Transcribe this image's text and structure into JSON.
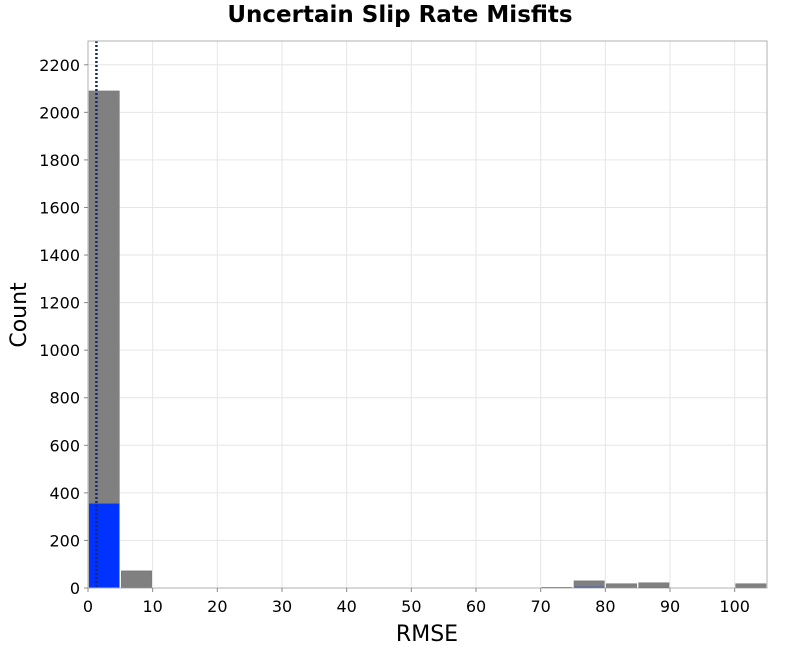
{
  "chart_data": {
    "type": "bar",
    "title": "Uncertain Slip Rate Misfits",
    "xlabel": "RMSE",
    "ylabel": "Count",
    "xlim": [
      0,
      105
    ],
    "ylim": [
      0,
      2300
    ],
    "x_ticks": [
      0,
      10,
      20,
      30,
      40,
      50,
      60,
      70,
      80,
      90,
      100
    ],
    "y_ticks": [
      0,
      200,
      400,
      600,
      800,
      1000,
      1200,
      1400,
      1600,
      1800,
      2000,
      2200
    ],
    "grid": true,
    "bin_width": 5,
    "series": [
      {
        "color": "#808080",
        "bins": [
          {
            "x0": 0,
            "x1": 5,
            "value": 2090
          },
          {
            "x0": 5,
            "x1": 10,
            "value": 72
          },
          {
            "x0": 70,
            "x1": 75,
            "value": 3
          },
          {
            "x0": 75,
            "x1": 80,
            "value": 30
          },
          {
            "x0": 80,
            "x1": 85,
            "value": 18
          },
          {
            "x0": 85,
            "x1": 90,
            "value": 22
          },
          {
            "x0": 100,
            "x1": 105,
            "value": 18
          }
        ]
      },
      {
        "color": "#0033ff",
        "bins": [
          {
            "x0": 0,
            "x1": 5,
            "value": 355
          },
          {
            "x0": 5,
            "x1": 10,
            "value": 3
          },
          {
            "x0": 75,
            "x1": 80,
            "value": 5
          },
          {
            "x0": 80,
            "x1": 85,
            "value": 3
          },
          {
            "x0": 85,
            "x1": 90,
            "value": 4
          },
          {
            "x0": 100,
            "x1": 105,
            "value": 3
          }
        ]
      }
    ],
    "reference_lines": [
      {
        "x": 1.3,
        "style": "dotted",
        "color": "#1a2a66"
      }
    ]
  }
}
